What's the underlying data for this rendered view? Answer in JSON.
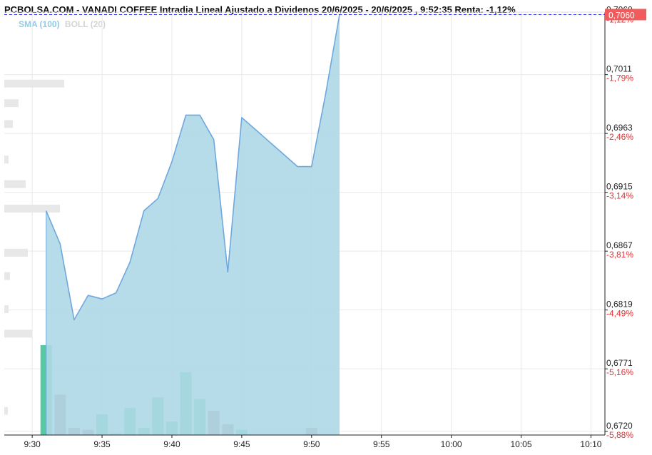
{
  "header": {
    "title": "PCBOLSA.COM - VANADI COFFEE Intradia Lineal Ajustado a Dividenos 20/6/2025 - 20/6/2025 , 9:52:35 Renta: -1,12%",
    "indicator_sma": "SMA (100)",
    "indicator_boll": "BOLL (20)"
  },
  "colors": {
    "area_fill": "#add8e6",
    "line": "#6fa8dc",
    "price_marker": "#f25b5b",
    "current_line": "#3333ee",
    "vol_up": "#59c9a5",
    "vol_down": "#b9858f",
    "pct_text": "#e03131",
    "grid": "#e9e9e9"
  },
  "chart_data": {
    "type": "area",
    "x": [
      "9:31",
      "9:32",
      "9:33",
      "9:34",
      "9:35",
      "9:36",
      "9:37",
      "9:38",
      "9:39",
      "9:40",
      "9:41",
      "9:42",
      "9:43",
      "9:44",
      "9:45",
      "9:46",
      "9:47",
      "9:48",
      "9:49",
      "9:50",
      "9:51",
      "9:52"
    ],
    "y": [
      0.69,
      0.6873,
      0.6811,
      0.6831,
      0.6828,
      0.6833,
      0.6858,
      0.69,
      0.691,
      0.694,
      0.6978,
      0.6978,
      0.6958,
      0.685,
      0.6976,
      0.6966,
      0.6956,
      0.6946,
      0.6936,
      0.6936,
      0.6995,
      0.706
    ],
    "volume": [
      {
        "t": "9:31",
        "v": 100,
        "dir": "up"
      },
      {
        "t": "9:32",
        "v": 45,
        "dir": "down"
      },
      {
        "t": "9:33",
        "v": 8,
        "dir": "down"
      },
      {
        "t": "9:34",
        "v": 6,
        "dir": "down"
      },
      {
        "t": "9:35",
        "v": 23,
        "dir": "up"
      },
      {
        "t": "9:36",
        "v": 2,
        "dir": "up"
      },
      {
        "t": "9:37",
        "v": 30,
        "dir": "up"
      },
      {
        "t": "9:38",
        "v": 8,
        "dir": "up"
      },
      {
        "t": "9:39",
        "v": 42,
        "dir": "up"
      },
      {
        "t": "9:40",
        "v": 15,
        "dir": "up"
      },
      {
        "t": "9:41",
        "v": 70,
        "dir": "up"
      },
      {
        "t": "9:42",
        "v": 40,
        "dir": "up"
      },
      {
        "t": "9:43",
        "v": 27,
        "dir": "down"
      },
      {
        "t": "9:44",
        "v": 12,
        "dir": "down"
      },
      {
        "t": "9:45",
        "v": 6,
        "dir": "up"
      },
      {
        "t": "9:50",
        "v": 8,
        "dir": "down"
      }
    ],
    "current_price": "0,7060",
    "y_ticks": [
      {
        "price": "0,7060",
        "pct": "-1,12%"
      },
      {
        "price": "0,7011",
        "pct": "-1,79%"
      },
      {
        "price": "0,6963",
        "pct": "-2,46%"
      },
      {
        "price": "0,6915",
        "pct": "-3,14%"
      },
      {
        "price": "0,6867",
        "pct": "-3,81%"
      },
      {
        "price": "0,6819",
        "pct": "-4,49%"
      },
      {
        "price": "0,6771",
        "pct": "-5,16%"
      },
      {
        "price": "0,6720",
        "pct": "-5,88%"
      }
    ],
    "x_ticks": [
      "9:30",
      "9:35",
      "9:40",
      "9:45",
      "9:50",
      "9:55",
      "10:00",
      "10:05",
      "10:10"
    ],
    "ylim": [
      0.6717,
      0.7062
    ],
    "xlim": [
      "9:28",
      "10:11"
    ],
    "grid": true,
    "volume_profile": [
      {
        "price": 0.7004,
        "v": 84
      },
      {
        "price": 0.6988,
        "v": 20
      },
      {
        "price": 0.6971,
        "v": 12
      },
      {
        "price": 0.6942,
        "v": 6
      },
      {
        "price": 0.6922,
        "v": 30
      },
      {
        "price": 0.6902,
        "v": 78
      },
      {
        "price": 0.6866,
        "v": 33
      },
      {
        "price": 0.6847,
        "v": 8
      },
      {
        "price": 0.682,
        "v": 6
      },
      {
        "price": 0.68,
        "v": 39
      },
      {
        "price": 0.6737,
        "v": 5
      }
    ]
  }
}
